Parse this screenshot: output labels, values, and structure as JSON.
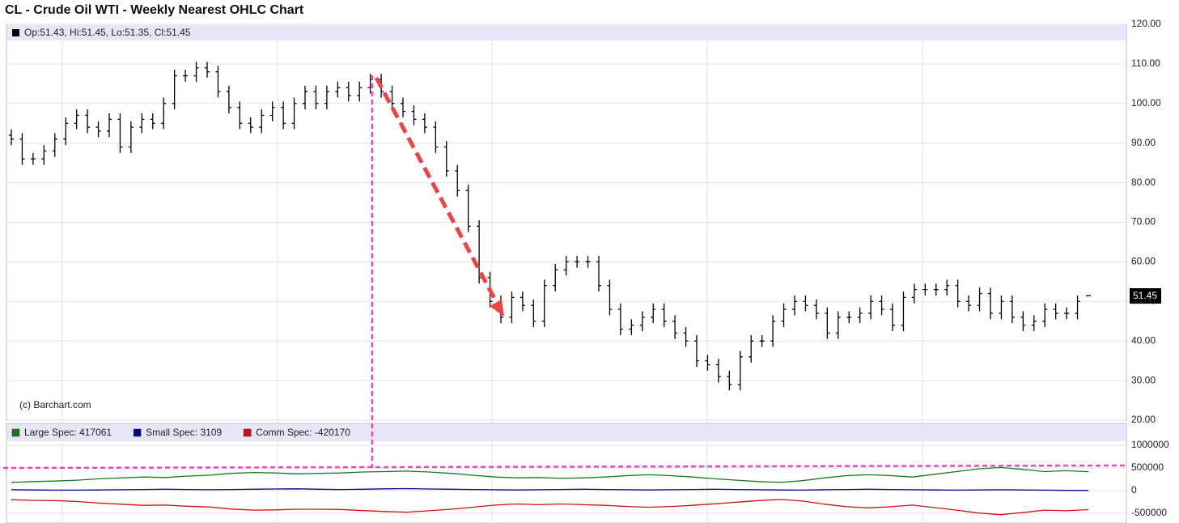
{
  "chart_data": [
    {
      "type": "ohlc",
      "title": "CL - Crude Oil WTI - Weekly Nearest OHLC Chart",
      "ohlc_label": "Op:51.43, Hi:51.45, Lo:51.35, Cl:51.45",
      "credit": "(c) Barchart.com",
      "color": "#000000",
      "open": [
        92,
        91,
        86,
        86,
        88,
        91,
        95,
        97,
        94,
        93,
        96,
        89,
        94,
        96,
        95,
        100,
        107,
        107,
        109,
        108,
        103,
        99,
        95,
        94,
        97,
        99,
        95,
        100,
        103,
        100,
        103,
        104,
        102,
        104,
        106,
        103,
        100,
        98,
        96,
        94,
        89,
        83,
        78,
        69,
        56,
        50,
        46,
        51,
        49,
        45,
        54,
        58,
        60,
        60,
        60,
        54,
        48,
        43,
        44,
        46,
        48,
        45,
        42,
        40,
        35,
        34,
        31,
        29,
        36,
        40,
        40,
        45,
        48,
        50,
        49,
        47,
        42,
        46,
        46,
        47,
        50,
        48,
        44,
        51,
        53,
        53,
        53,
        54,
        50,
        49,
        52,
        47,
        50,
        46,
        44,
        45,
        48,
        47,
        47,
        51.43
      ],
      "high": [
        93.5,
        92.5,
        87.5,
        89.5,
        92.5,
        96.5,
        98.5,
        98.5,
        95.5,
        97.5,
        97.5,
        95.5,
        97.5,
        97.5,
        101.5,
        108.5,
        108.5,
        110.5,
        110.5,
        109.5,
        104.5,
        100.5,
        96.5,
        98.5,
        100.5,
        100.5,
        101.5,
        104.5,
        104.5,
        104.5,
        105.5,
        105.5,
        105.5,
        107.5,
        107.5,
        104.5,
        101.5,
        99.5,
        97.5,
        95.5,
        90.5,
        84.5,
        79.5,
        70.5,
        57.5,
        51.5,
        52.5,
        52.5,
        50.5,
        55.5,
        59.5,
        61.5,
        61.5,
        61.5,
        61.5,
        55.5,
        49.5,
        45.5,
        47.5,
        49.5,
        49.5,
        46.5,
        43.5,
        41.5,
        36.5,
        35.5,
        32.5,
        37.5,
        41.5,
        41.5,
        46.5,
        49.5,
        51.5,
        51.5,
        50.5,
        48.5,
        47.5,
        47.5,
        48.5,
        51.5,
        51.5,
        49.5,
        52.5,
        54.5,
        54.5,
        54.5,
        55.5,
        55.5,
        51.5,
        53.5,
        53.5,
        51.5,
        51.5,
        47.5,
        46.5,
        49.5,
        49.5,
        48.5,
        51.5,
        51.45
      ],
      "low": [
        89.5,
        84.5,
        84.5,
        84.5,
        86.5,
        89.5,
        93.5,
        92.5,
        91.5,
        91.5,
        87.5,
        87.5,
        92.5,
        93.5,
        93.5,
        98.5,
        105.5,
        105.5,
        106.5,
        101.5,
        97.5,
        93.5,
        92.5,
        92.5,
        95.5,
        93.5,
        93.5,
        98.5,
        98.5,
        98.5,
        101.5,
        100.5,
        100.5,
        102.5,
        101.5,
        98.5,
        96.5,
        94.5,
        92.5,
        87.5,
        81.5,
        76.5,
        67.5,
        54.5,
        48.5,
        44.5,
        44.5,
        47.5,
        43.5,
        43.5,
        52.5,
        56.5,
        58.5,
        58.5,
        52.5,
        46.5,
        41.5,
        41.5,
        42.5,
        44.5,
        43.5,
        40.5,
        38.5,
        33.5,
        32.5,
        29.5,
        27.5,
        27.5,
        34.5,
        38.5,
        38.5,
        43.5,
        46.5,
        47.5,
        45.5,
        40.5,
        40.5,
        44.5,
        44.5,
        45.5,
        46.5,
        42.5,
        42.5,
        49.5,
        51.5,
        51.5,
        51.5,
        48.5,
        47.5,
        47.5,
        45.5,
        45.5,
        44.5,
        42.5,
        42.5,
        43.5,
        45.5,
        45.5,
        45.5,
        51.35
      ],
      "close": [
        91,
        86,
        86,
        88,
        91,
        95,
        97,
        94,
        93,
        96,
        89,
        94,
        96,
        95,
        100,
        107,
        107,
        109,
        108,
        103,
        99,
        95,
        94,
        97,
        99,
        95,
        100,
        103,
        100,
        103,
        104,
        102,
        104,
        106,
        103,
        100,
        98,
        96,
        94,
        89,
        83,
        78,
        69,
        56,
        50,
        46,
        51,
        49,
        45,
        54,
        58,
        60,
        60,
        60,
        54,
        48,
        43,
        44,
        46,
        48,
        45,
        42,
        40,
        35,
        34,
        31,
        29,
        36,
        40,
        40,
        45,
        48,
        50,
        49,
        47,
        42,
        46,
        46,
        47,
        50,
        48,
        44,
        51,
        53,
        53,
        53,
        54,
        50,
        49,
        52,
        47,
        50,
        46,
        44,
        45,
        48,
        47,
        47,
        50,
        51.45
      ],
      "ylim": [
        20,
        120
      ],
      "yticks": [
        {
          "value": 20,
          "label": "20.00"
        },
        {
          "value": 30,
          "label": "30.00"
        },
        {
          "value": 40,
          "label": "40.00"
        },
        {
          "value": 50,
          "label": "50.00"
        },
        {
          "value": 60,
          "label": "60.00"
        },
        {
          "value": 70,
          "label": "70.00"
        },
        {
          "value": 80,
          "label": "80.00"
        },
        {
          "value": 90,
          "label": "90.00"
        },
        {
          "value": 100,
          "label": "100.00"
        },
        {
          "value": 110,
          "label": "110.00"
        },
        {
          "value": 120,
          "label": "120.00"
        }
      ],
      "grid": true
    },
    {
      "type": "line",
      "series": [
        {
          "name": "Large Spec: 417061",
          "color": "#1a7a1a",
          "values": [
            180000,
            200000,
            210000,
            230000,
            260000,
            280000,
            300000,
            290000,
            320000,
            340000,
            380000,
            400000,
            390000,
            370000,
            380000,
            390000,
            410000,
            420000,
            430000,
            410000,
            380000,
            340000,
            300000,
            280000,
            290000,
            270000,
            280000,
            300000,
            330000,
            350000,
            330000,
            300000,
            260000,
            230000,
            200000,
            180000,
            220000,
            280000,
            330000,
            350000,
            330000,
            300000,
            360000,
            420000,
            480000,
            510000,
            470000,
            420000,
            440000,
            417061
          ]
        },
        {
          "name": "Small Spec: 3109",
          "color": "#00008b",
          "values": [
            20000,
            15000,
            10000,
            10000,
            15000,
            20000,
            25000,
            30000,
            25000,
            20000,
            25000,
            30000,
            35000,
            40000,
            30000,
            25000,
            30000,
            40000,
            45000,
            35000,
            30000,
            25000,
            20000,
            15000,
            20000,
            25000,
            30000,
            25000,
            20000,
            15000,
            20000,
            25000,
            30000,
            25000,
            20000,
            15000,
            10000,
            20000,
            25000,
            30000,
            25000,
            20000,
            15000,
            10000,
            15000,
            20000,
            15000,
            10000,
            5000,
            3109
          ]
        },
        {
          "name": "Comm Spec: -420170",
          "color": "#cc1111",
          "values": [
            -200000,
            -215000,
            -220000,
            -240000,
            -275000,
            -300000,
            -325000,
            -320000,
            -345000,
            -360000,
            -405000,
            -430000,
            -425000,
            -410000,
            -410000,
            -415000,
            -440000,
            -460000,
            -475000,
            -445000,
            -410000,
            -365000,
            -320000,
            -295000,
            -310000,
            -295000,
            -310000,
            -325000,
            -350000,
            -365000,
            -350000,
            -325000,
            -290000,
            -255000,
            -220000,
            -195000,
            -230000,
            -300000,
            -355000,
            -380000,
            -355000,
            -320000,
            -375000,
            -430000,
            -495000,
            -530000,
            -485000,
            -430000,
            -445000,
            -420170
          ]
        }
      ],
      "ylim": [
        -714000,
        1482000
      ],
      "yticks": [
        -500000,
        0,
        500000,
        1000000
      ],
      "grid": true
    }
  ]
}
